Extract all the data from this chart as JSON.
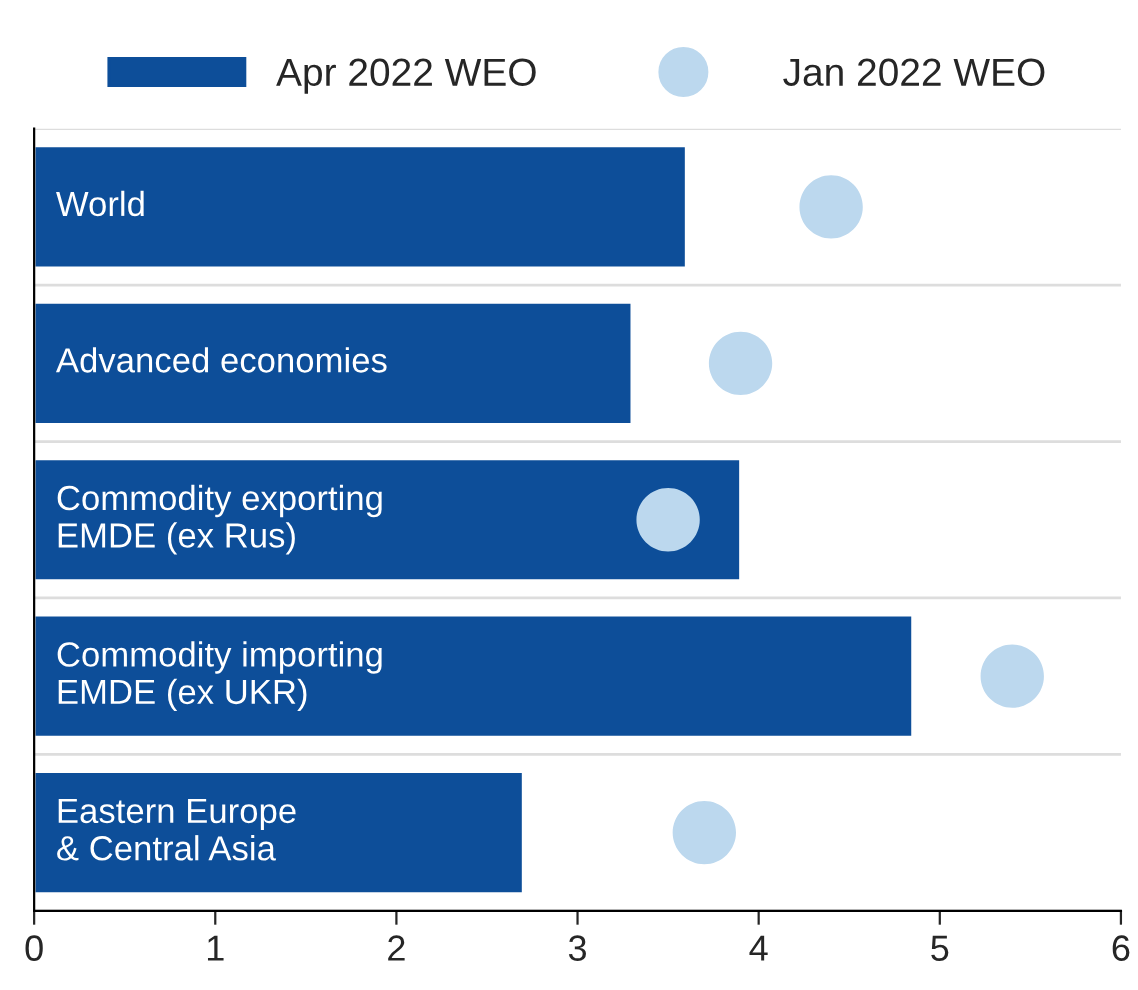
{
  "chart_data": {
    "type": "bar",
    "orientation": "horizontal",
    "categories": [
      "World",
      "Advanced economies",
      "Commodity exporting\nEMDE (ex Rus)",
      "Commodity importing\nEMDE (ex UKR)",
      "Eastern Europe\n& Central Asia"
    ],
    "series": [
      {
        "name": "Apr 2022 WEO",
        "color": "#0d4e99",
        "values": [
          3.6,
          3.3,
          3.9,
          4.85,
          2.7
        ]
      },
      {
        "name": "Jan 2022 WEO",
        "type": "scatter",
        "color": "#bcd8ee",
        "values": [
          4.4,
          3.9,
          3.5,
          5.4,
          3.7
        ]
      }
    ],
    "xlim": [
      0,
      6
    ],
    "xticks": [
      0,
      1,
      2,
      3,
      4,
      5,
      6
    ],
    "grid": "y",
    "legend": "top",
    "marker": "circle"
  }
}
